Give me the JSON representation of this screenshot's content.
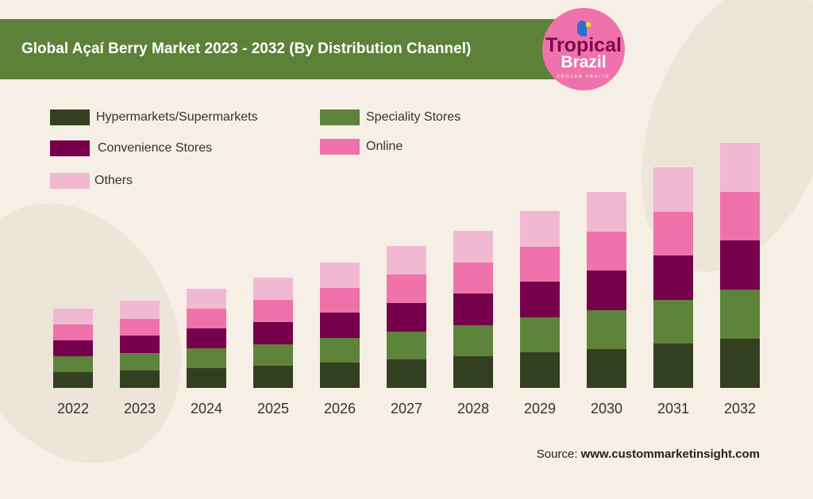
{
  "title": "Global Açaí Berry Market 2023 - 2032 (By Distribution Channel)",
  "logo": {
    "line1": "Tropical",
    "line2": "Brazil",
    "line3": "FROZEN FRUITS"
  },
  "source": {
    "label": "Source:",
    "site": "www.custommarketinsight.com"
  },
  "chart_data": {
    "type": "bar",
    "stacked": true,
    "title": "Global Açaí Berry Market 2023 - 2032 (By Distribution Channel)",
    "xlabel": "",
    "ylabel": "",
    "y_axis_visible": false,
    "grid": false,
    "legend_position": "top-left",
    "categories": [
      "2022",
      "2023",
      "2024",
      "2025",
      "2026",
      "2027",
      "2028",
      "2029",
      "2030",
      "2031",
      "2032"
    ],
    "series": [
      {
        "name": "Hypermarkets/Supermarkets",
        "color": "#334020",
        "values": [
          20,
          22,
          25,
          28,
          32,
          36,
          40,
          45,
          49,
          56,
          62
        ]
      },
      {
        "name": "Speciality Stores",
        "color": "#5e833a",
        "values": [
          20,
          22,
          25,
          27,
          31,
          35,
          39,
          44,
          49,
          55,
          62
        ]
      },
      {
        "name": "Convenience Stores",
        "color": "#76004b",
        "values": [
          20,
          22,
          25,
          28,
          32,
          36,
          40,
          45,
          50,
          56,
          62
        ]
      },
      {
        "name": "Online",
        "color": "#f072ab",
        "values": [
          20,
          21,
          25,
          28,
          31,
          36,
          39,
          44,
          49,
          55,
          61
        ]
      },
      {
        "name": "Others",
        "color": "#f1b8d2",
        "values": [
          20,
          23,
          25,
          28,
          32,
          36,
          40,
          45,
          50,
          56,
          62
        ]
      }
    ]
  }
}
